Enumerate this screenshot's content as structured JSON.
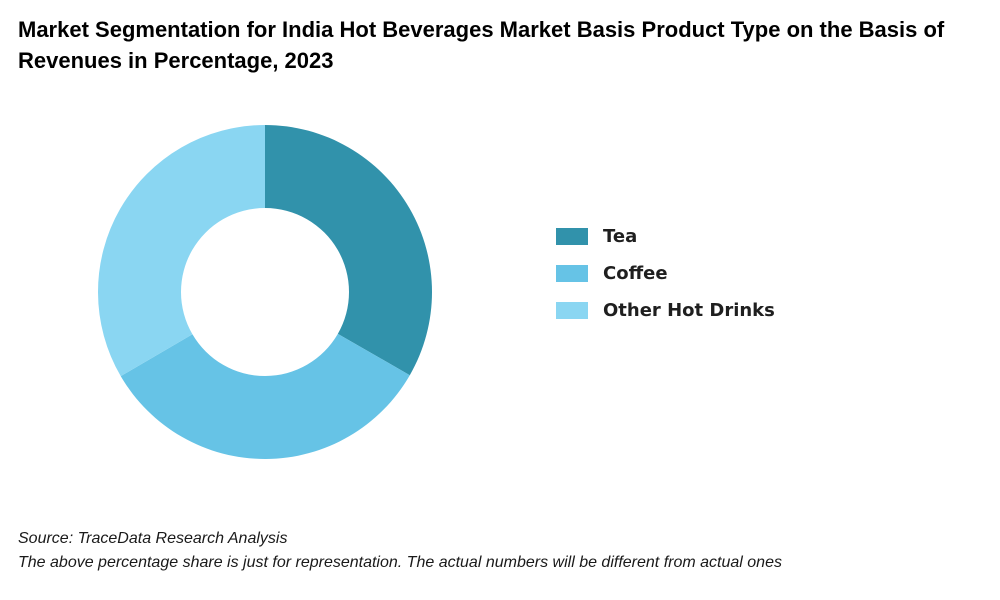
{
  "title": "Market Segmentation for India Hot Beverages Market Basis Product Type on the Basis of Revenues in Percentage, 2023",
  "footer": {
    "source": "Source: TraceData Research Analysis",
    "note": "The above percentage share is just for representation. The actual numbers will be different from actual ones"
  },
  "chart_data": {
    "type": "pie",
    "variant": "donut",
    "title": "Market Segmentation for India Hot Beverages Market Basis Product Type on the Basis of Revenues in Percentage, 2023",
    "categories": [
      "Tea",
      "Coffee",
      "Other Hot Drinks"
    ],
    "values": [
      33.3,
      33.3,
      33.4
    ],
    "colors": [
      "#3192ab",
      "#66c3e6",
      "#8ad6f2"
    ],
    "start_angle_deg": 0,
    "direction": "clockwise",
    "legend_position": "right",
    "data_labels": false
  }
}
